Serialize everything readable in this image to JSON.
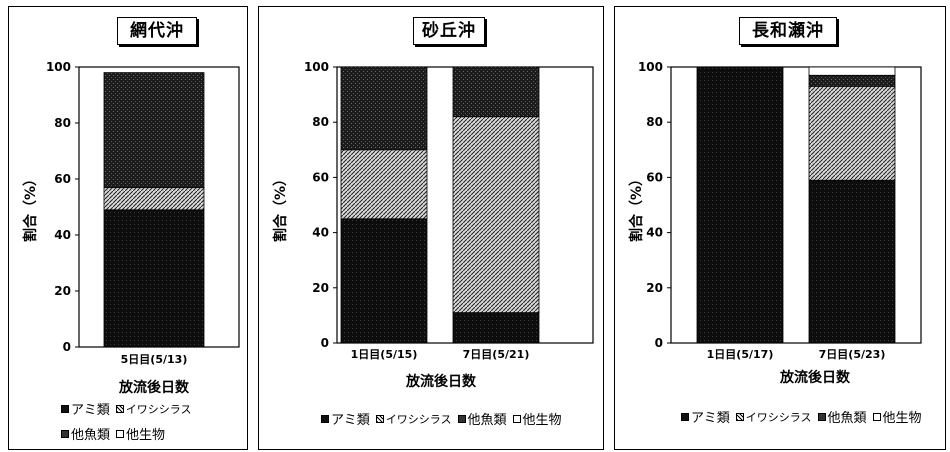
{
  "chart_data": [
    {
      "type": "bar",
      "title": "網代沖",
      "ylabel": "割合（%）",
      "xlabel": "放流後日数",
      "ylim": [
        0,
        100
      ],
      "yticks": [
        "0",
        "20",
        "40",
        "60",
        "80",
        "100"
      ],
      "categories": [
        "5日目(5/13)"
      ],
      "series": [
        {
          "name": "アミ類",
          "values": [
            49
          ]
        },
        {
          "name": "イワシシラス",
          "values": [
            8
          ]
        },
        {
          "name": "他魚類",
          "values": [
            41
          ]
        },
        {
          "name": "他生物",
          "values": [
            0
          ]
        }
      ],
      "legend_placement": "bottom"
    },
    {
      "type": "bar",
      "title": "砂丘沖",
      "ylabel": "割合（%）",
      "xlabel": "放流後日数",
      "ylim": [
        0,
        100
      ],
      "yticks": [
        "0",
        "20",
        "40",
        "60",
        "80",
        "100"
      ],
      "categories": [
        "1日目(5/15)",
        "7日目(5/21)"
      ],
      "series": [
        {
          "name": "アミ類",
          "values": [
            45,
            11
          ]
        },
        {
          "name": "イワシシラス",
          "values": [
            25,
            71
          ]
        },
        {
          "name": "他魚類",
          "values": [
            30,
            18
          ]
        },
        {
          "name": "他生物",
          "values": [
            0,
            0
          ]
        }
      ],
      "legend_placement": "bottom"
    },
    {
      "type": "bar",
      "title": "長和瀬沖",
      "ylabel": "割合（%）",
      "xlabel": "放流後日数",
      "ylim": [
        0,
        100
      ],
      "yticks": [
        "0",
        "20",
        "40",
        "60",
        "80",
        "100"
      ],
      "categories": [
        "1日目(5/17)",
        "7日目(5/23)"
      ],
      "series": [
        {
          "name": "アミ類",
          "values": [
            100,
            59
          ]
        },
        {
          "name": "イワシシラス",
          "values": [
            0,
            34
          ]
        },
        {
          "name": "他魚類",
          "values": [
            0,
            4
          ]
        },
        {
          "name": "他生物",
          "values": [
            0,
            3
          ]
        }
      ],
      "legend_placement": "bottom"
    }
  ],
  "legend_items": [
    {
      "label": "アミ類",
      "pattern": "dense-dark"
    },
    {
      "label": "イワシシラス",
      "pattern": "hatched"
    },
    {
      "label": "他魚類",
      "pattern": "dotted-dark"
    },
    {
      "label": "他生物",
      "pattern": "white"
    }
  ]
}
